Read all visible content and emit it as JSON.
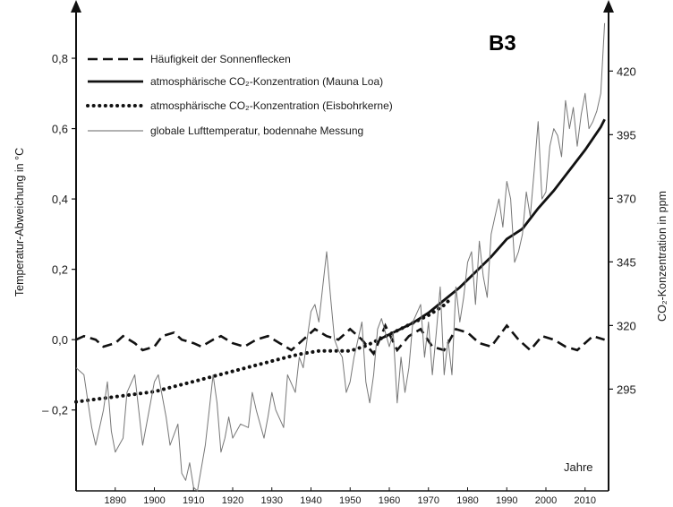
{
  "chart_data": {
    "type": "line",
    "badge": "B3",
    "xlabel": "Jahre",
    "ylabel_left": "Temperatur-Abweichung in °C",
    "ylabel_right": "CO₂-Konzentration in ppm",
    "x_ticks": [
      1890,
      1900,
      1910,
      1920,
      1930,
      1940,
      1950,
      1960,
      1970,
      1980,
      1990,
      2000,
      2010
    ],
    "x_tick_labels": [
      "1890",
      "1900",
      "1910",
      "1920",
      "1930",
      "1940",
      "1950",
      "1960",
      "1970",
      "1980",
      "1990",
      "2000",
      "2010"
    ],
    "xlim": [
      1880,
      2016
    ],
    "y_left_ticks": [
      -0.2,
      0.0,
      0.2,
      0.4,
      0.6,
      0.8
    ],
    "y_left_tick_labels": [
      "– 0,2",
      "0,0",
      "0,2",
      "0,4",
      "0,6",
      "0,8"
    ],
    "y_left_lim": [
      -0.43,
      0.93
    ],
    "y_right_ticks": [
      295,
      320,
      345,
      370,
      395,
      420
    ],
    "y_right_tick_labels": [
      "295",
      "320",
      "345",
      "370",
      "395",
      "420"
    ],
    "y_right_lim": [
      255,
      443
    ],
    "legend": [
      {
        "name": "Häufigkeit der Sonnenflecken",
        "style": "dashed"
      },
      {
        "name": "atmosphärische CO₂-Konzentration (Mauna Loa)",
        "style": "solid"
      },
      {
        "name": "atmosphärische CO₂-Konzentration (Eisbohrkerne)",
        "style": "dotted"
      },
      {
        "name": "globale Lufttemperatur, bodennahe Messung",
        "style": "thin"
      }
    ],
    "series": [
      {
        "axis": "left",
        "style": "dashed",
        "x": [
          1880,
          1882,
          1885,
          1887,
          1890,
          1892,
          1895,
          1897,
          1900,
          1902,
          1905,
          1907,
          1910,
          1912,
          1915,
          1917,
          1920,
          1923,
          1926,
          1929,
          1932,
          1935,
          1938,
          1941,
          1944,
          1947,
          1950,
          1953,
          1956,
          1959,
          1962,
          1965,
          1968,
          1971,
          1974,
          1977,
          1980,
          1983,
          1986,
          1990,
          1993,
          1996,
          1999,
          2002,
          2005,
          2008,
          2012,
          2015
        ],
        "values": [
          0.0,
          0.01,
          0.0,
          -0.02,
          -0.01,
          0.01,
          -0.01,
          -0.03,
          -0.02,
          0.01,
          0.02,
          0.0,
          -0.01,
          -0.02,
          0.0,
          0.01,
          -0.01,
          -0.02,
          0.0,
          0.01,
          -0.01,
          -0.03,
          0.0,
          0.03,
          0.01,
          0.0,
          0.03,
          0.0,
          -0.04,
          0.04,
          -0.03,
          0.01,
          0.03,
          -0.02,
          -0.03,
          0.03,
          0.02,
          -0.01,
          -0.02,
          0.04,
          0.0,
          -0.03,
          0.01,
          0.0,
          -0.02,
          -0.03,
          0.01,
          0.0
        ]
      },
      {
        "axis": "right",
        "style": "solid",
        "x": [
          1958,
          1962,
          1966,
          1970,
          1974,
          1978,
          1982,
          1986,
          1990,
          1994,
          1998,
          2002,
          2006,
          2010,
          2014,
          2015
        ],
        "values": [
          315,
          318,
          321,
          325,
          330,
          335,
          341,
          347,
          354,
          358,
          366,
          373,
          381,
          389,
          398,
          401
        ]
      },
      {
        "axis": "right",
        "style": "dotted",
        "x": [
          1880,
          1885,
          1890,
          1895,
          1900,
          1905,
          1910,
          1915,
          1920,
          1925,
          1930,
          1935,
          1938,
          1942,
          1946,
          1950,
          1954,
          1958,
          1962,
          1966,
          1970,
          1974,
          1976
        ],
        "values": [
          290,
          291,
          292,
          293,
          294,
          296,
          298,
          300,
          302,
          304,
          306,
          308,
          309,
          310,
          310,
          310,
          312,
          315,
          318,
          321,
          324,
          328,
          331
        ]
      },
      {
        "axis": "left",
        "style": "thin",
        "x": [
          1880,
          1882,
          1884,
          1885,
          1887,
          1888,
          1889,
          1890,
          1892,
          1893,
          1895,
          1896,
          1897,
          1898,
          1900,
          1901,
          1903,
          1904,
          1906,
          1907,
          1908,
          1909,
          1910,
          1911,
          1913,
          1914,
          1915,
          1916,
          1917,
          1918,
          1919,
          1920,
          1922,
          1924,
          1925,
          1926,
          1928,
          1929,
          1930,
          1931,
          1933,
          1934,
          1936,
          1937,
          1938,
          1939,
          1940,
          1941,
          1942,
          1943,
          1944,
          1945,
          1946,
          1947,
          1948,
          1949,
          1950,
          1951,
          1953,
          1954,
          1955,
          1956,
          1957,
          1958,
          1960,
          1961,
          1962,
          1963,
          1964,
          1965,
          1966,
          1968,
          1969,
          1970,
          1971,
          1972,
          1973,
          1974,
          1975,
          1976,
          1977,
          1978,
          1979,
          1980,
          1981,
          1982,
          1983,
          1984,
          1985,
          1986,
          1987,
          1988,
          1989,
          1990,
          1991,
          1992,
          1993,
          1994,
          1995,
          1996,
          1997,
          1998,
          1999,
          2000,
          2001,
          2002,
          2003,
          2004,
          2005,
          2006,
          2007,
          2008,
          2009,
          2010,
          2011,
          2012,
          2013,
          2014,
          2015
        ],
        "values": [
          -0.08,
          -0.1,
          -0.25,
          -0.3,
          -0.2,
          -0.12,
          -0.26,
          -0.32,
          -0.28,
          -0.15,
          -0.1,
          -0.2,
          -0.3,
          -0.24,
          -0.12,
          -0.1,
          -0.22,
          -0.3,
          -0.24,
          -0.38,
          -0.4,
          -0.35,
          -0.42,
          -0.43,
          -0.3,
          -0.2,
          -0.1,
          -0.18,
          -0.32,
          -0.28,
          -0.22,
          -0.28,
          -0.24,
          -0.25,
          -0.15,
          -0.2,
          -0.28,
          -0.22,
          -0.15,
          -0.2,
          -0.25,
          -0.1,
          -0.15,
          -0.05,
          -0.08,
          0.0,
          0.08,
          0.1,
          0.05,
          0.15,
          0.25,
          0.12,
          0.0,
          -0.03,
          -0.05,
          -0.15,
          -0.12,
          -0.05,
          0.05,
          -0.12,
          -0.18,
          -0.1,
          0.03,
          0.06,
          -0.02,
          0.02,
          -0.18,
          -0.05,
          -0.15,
          -0.08,
          0.05,
          0.1,
          -0.05,
          0.05,
          -0.1,
          0.02,
          0.15,
          -0.1,
          0.0,
          -0.1,
          0.15,
          0.05,
          0.12,
          0.22,
          0.25,
          0.1,
          0.28,
          0.18,
          0.12,
          0.3,
          0.35,
          0.4,
          0.32,
          0.45,
          0.4,
          0.22,
          0.25,
          0.3,
          0.42,
          0.35,
          0.48,
          0.62,
          0.4,
          0.42,
          0.55,
          0.6,
          0.58,
          0.52,
          0.68,
          0.6,
          0.66,
          0.55,
          0.64,
          0.7,
          0.6,
          0.62,
          0.65,
          0.7,
          0.9
        ]
      }
    ]
  }
}
